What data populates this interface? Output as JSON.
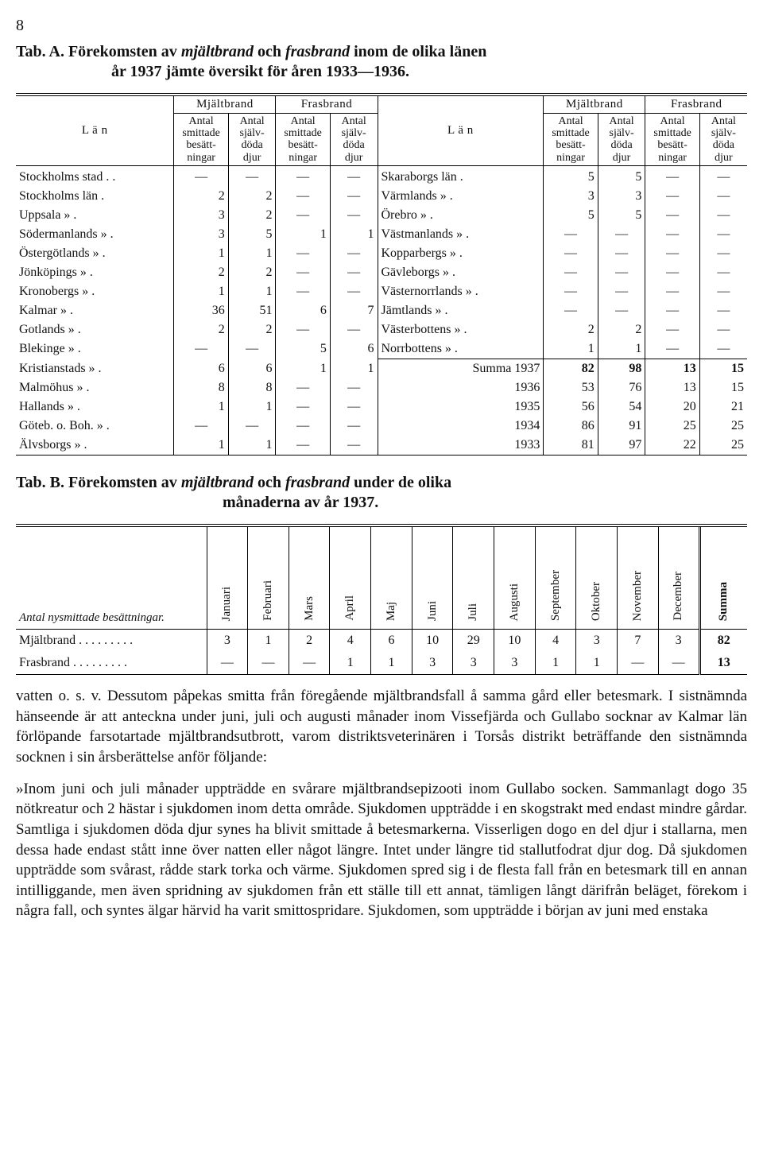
{
  "page_number": "8",
  "tabA": {
    "title_lead": "Tab. A.",
    "title_main": "Förekomsten av",
    "title_em1": "mjältbrand",
    "title_mid": "och",
    "title_em2": "frasbrand",
    "title_tail": "inom de olika länen år 1937 jämte översikt för åren 1933—1936.",
    "col_lan": "L ä n",
    "grp_mjalt": "Mjältbrand",
    "grp_fras": "Frasbrand",
    "col_smit": "Antal smit­tade besätt­ningar",
    "col_djur": "Antal själv­döda djur",
    "left_rows": [
      {
        "l": "Stockholms stad . .",
        "a": "—",
        "b": "—",
        "c": "—",
        "d": "—"
      },
      {
        "l": "Stockholms    län .",
        "a": "2",
        "b": "2",
        "c": "—",
        "d": "—"
      },
      {
        "l": "Uppsala          » .",
        "a": "3",
        "b": "2",
        "c": "—",
        "d": "—"
      },
      {
        "l": "Södermanlands  » .",
        "a": "3",
        "b": "5",
        "c": "1",
        "d": "1"
      },
      {
        "l": "Östergötlands   » .",
        "a": "1",
        "b": "1",
        "c": "—",
        "d": "—"
      },
      {
        "l": "Jönköpings      » .",
        "a": "2",
        "b": "2",
        "c": "—",
        "d": "—"
      },
      {
        "l": "Kronobergs     » .",
        "a": "1",
        "b": "1",
        "c": "—",
        "d": "—"
      },
      {
        "l": "Kalmar           » .",
        "a": "36",
        "b": "51",
        "c": "6",
        "d": "7"
      },
      {
        "l": "Gotlands         » .",
        "a": "2",
        "b": "2",
        "c": "—",
        "d": "—"
      },
      {
        "l": "Blekinge         » .",
        "a": "—",
        "b": "—",
        "c": "5",
        "d": "6"
      },
      {
        "l": "Kristianstads   » .",
        "a": "6",
        "b": "6",
        "c": "1",
        "d": "1"
      },
      {
        "l": "Malmöhus       » .",
        "a": "8",
        "b": "8",
        "c": "—",
        "d": "—"
      },
      {
        "l": "Hallands         » .",
        "a": "1",
        "b": "1",
        "c": "—",
        "d": "—"
      },
      {
        "l": "Göteb. o. Boh. » .",
        "a": "—",
        "b": "—",
        "c": "—",
        "d": "—"
      },
      {
        "l": "Älvsborgs        » .",
        "a": "1",
        "b": "1",
        "c": "—",
        "d": "—"
      }
    ],
    "right_rows": [
      {
        "l": "Skaraborgs    län .",
        "a": "5",
        "b": "5",
        "c": "—",
        "d": "—"
      },
      {
        "l": "Värmlands      » .",
        "a": "3",
        "b": "3",
        "c": "—",
        "d": "—"
      },
      {
        "l": "Örebro           » .",
        "a": "5",
        "b": "5",
        "c": "—",
        "d": "—"
      },
      {
        "l": "Västmanlands  » .",
        "a": "—",
        "b": "—",
        "c": "—",
        "d": "—"
      },
      {
        "l": "Kopparbergs   » .",
        "a": "—",
        "b": "—",
        "c": "—",
        "d": "—"
      },
      {
        "l": "Gävleborgs     » .",
        "a": "—",
        "b": "—",
        "c": "—",
        "d": "—"
      },
      {
        "l": "Västernorrlands » .",
        "a": "—",
        "b": "—",
        "c": "—",
        "d": "—"
      },
      {
        "l": "Jämtlands       » .",
        "a": "—",
        "b": "—",
        "c": "—",
        "d": "—"
      },
      {
        "l": "Västerbottens  » .",
        "a": "2",
        "b": "2",
        "c": "—",
        "d": "—"
      },
      {
        "l": "Norrbottens    » .",
        "a": "1",
        "b": "1",
        "c": "—",
        "d": "—"
      }
    ],
    "summa_label": "Summa 1937",
    "summa": {
      "a": "82",
      "b": "98",
      "c": "13",
      "d": "15"
    },
    "years": [
      {
        "y": "1936",
        "a": "53",
        "b": "76",
        "c": "13",
        "d": "15"
      },
      {
        "y": "1935",
        "a": "56",
        "b": "54",
        "c": "20",
        "d": "21"
      },
      {
        "y": "1934",
        "a": "86",
        "b": "91",
        "c": "25",
        "d": "25"
      },
      {
        "y": "1933",
        "a": "81",
        "b": "97",
        "c": "22",
        "d": "25"
      }
    ]
  },
  "tabB": {
    "title_lead": "Tab. B.",
    "title_main": "Förekomsten av",
    "title_em1": "mjältbrand",
    "title_mid": "och",
    "title_em2": "frasbrand",
    "title_tail": "under de olika månaderna av år 1937.",
    "rowlabel": "Antal nysmittade besättningar.",
    "months": [
      "Januari",
      "Februari",
      "Mars",
      "April",
      "Maj",
      "Juni",
      "Juli",
      "Augusti",
      "September",
      "Oktober",
      "November",
      "December",
      "Summa"
    ],
    "rows": [
      {
        "l": "Mjältbrand . . . . . . . . .",
        "v": [
          "3",
          "1",
          "2",
          "4",
          "6",
          "10",
          "29",
          "10",
          "4",
          "3",
          "7",
          "3",
          "82"
        ]
      },
      {
        "l": "Frasbrand  . . . . . . . . .",
        "v": [
          "—",
          "—",
          "—",
          "1",
          "1",
          "3",
          "3",
          "3",
          "1",
          "1",
          "—",
          "—",
          "13"
        ]
      }
    ]
  },
  "para1": "vatten o. s. v. Dessutom påpekas smitta från föregående mjältbrandsfall å samma gård eller betesmark. I sistnämnda hänseende är att anteckna under juni, juli och augusti månader inom Vissefjärda och Gullabo socknar av Kalmar län förlöpande farsotartade mjältbrandsutbrott, varom distriktsveterinären i Torsås distrikt beträffande den sistnämnda socknen i sin årsberättelse anför följande:",
  "para2": "»Inom juni och juli månader uppträdde en svårare mjältbrandsepizooti inom Gullabo socken. Sammanlagt dogo 35 nötkreatur och 2 hästar i sjukdomen inom detta område. Sjukdomen uppträdde i en skogstrakt med endast mindre gårdar. Samtliga i sjukdomen döda djur synes ha blivit smittade å betesmarkerna. Visserligen dogo en del djur i stallarna, men dessa hade endast stått inne över natten eller något längre. Intet under längre tid stallutfodrat djur dog. Då sjukdomen uppträdde som svårast, rådde stark torka och värme. Sjukdomen spred sig i de flesta fall från en betesmark till en annan intilliggande, men även spridning av sjukdomen från ett ställe till ett annat, tämligen långt därifrån beläget, förekom i några fall, och syntes älgar härvid ha varit smittospridare. Sjukdomen, som uppträdde i början av juni med enstaka"
}
